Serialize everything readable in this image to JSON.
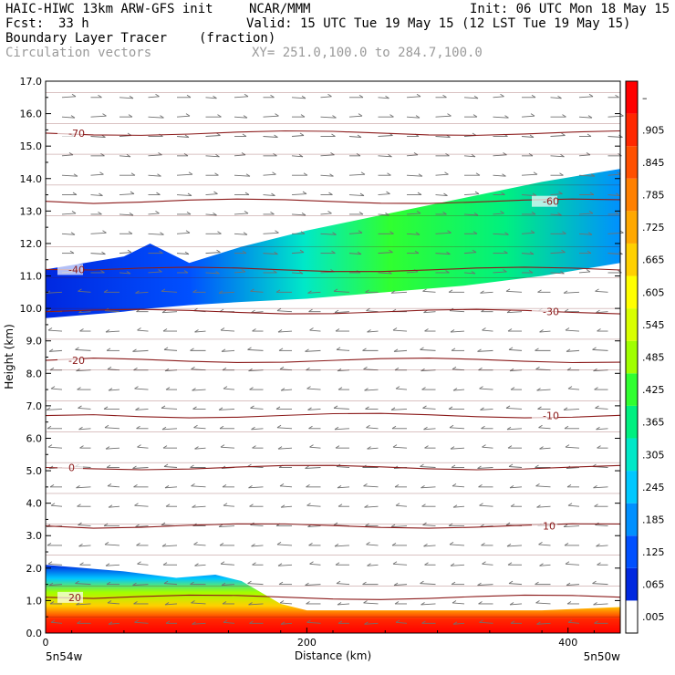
{
  "header": {
    "model": "HAIC-HIWC 13km ARW-GFS init",
    "org": "NCAR/MMM",
    "init": "Init: 06 UTC Mon 18 May 15",
    "fcst_label": "Fcst:",
    "fcst_value": "33 h",
    "valid": "Valid: 15 UTC Tue 19 May 15 (12 LST Tue 19 May 15)",
    "field": "Boundary Layer Tracer",
    "units": "(fraction)",
    "vectors": "Circulation vectors",
    "xy": "XY= 251.0,100.0 to 284.7,100.0"
  },
  "chart_data": {
    "type": "heatmap",
    "xlabel": "Distance (km)",
    "ylabel": "Height (km)",
    "xlim": [
      0,
      440
    ],
    "ylim": [
      0,
      17
    ],
    "x_ticks": [
      0,
      200,
      400
    ],
    "y_ticks": [
      "0.0",
      "1.0",
      "2.0",
      "3.0",
      "4.0",
      "5.0",
      "6.0",
      "7.0",
      "8.0",
      "9.0",
      "10.0",
      "11.0",
      "12.0",
      "13.0",
      "14.0",
      "15.0",
      "16.0",
      "17.0"
    ],
    "x_endpoint_labels": [
      "5n54w",
      "5n50w"
    ],
    "colorbar": {
      "labels": [
        ".005",
        ".065",
        ".125",
        ".185",
        ".245",
        ".305",
        ".365",
        ".425",
        ".485",
        ".545",
        ".605",
        ".665",
        ".725",
        ".785",
        ".845",
        ".905",
        "–"
      ],
      "colors": [
        "#ffffff",
        "#0028e0",
        "#0050ff",
        "#0090ff",
        "#00c8ff",
        "#00e8c8",
        "#00f080",
        "#30ff30",
        "#a0ff00",
        "#d8ff00",
        "#ffff00",
        "#ffd000",
        "#ffa800",
        "#ff8000",
        "#ff5000",
        "#ff2800",
        "#ff0000"
      ]
    },
    "tracer_layers": [
      {
        "name": "upper",
        "x": [
          0,
          60,
          80,
          110,
          150,
          200,
          260,
          320,
          380,
          440
        ],
        "top": [
          11.2,
          11.6,
          12.0,
          11.4,
          11.9,
          12.4,
          12.9,
          13.4,
          13.9,
          14.3
        ],
        "bottom": [
          9.7,
          9.9,
          10.0,
          10.1,
          10.2,
          10.3,
          10.5,
          10.7,
          11.0,
          11.4
        ]
      },
      {
        "name": "boundary",
        "x": [
          0,
          60,
          100,
          130,
          150,
          180,
          200,
          260,
          320,
          380,
          440
        ],
        "top": [
          2.1,
          1.9,
          1.7,
          1.8,
          1.6,
          0.9,
          0.7,
          0.7,
          0.7,
          0.7,
          0.8
        ]
      }
    ],
    "temperature_contours": [
      {
        "label": "-70",
        "y": 15.4
      },
      {
        "label": "-60",
        "y": 13.3
      },
      {
        "label": "-40",
        "y": 11.2
      },
      {
        "label": "-30",
        "y": 9.9
      },
      {
        "label": "-20",
        "y": 8.4
      },
      {
        "label": "-10",
        "y": 6.7
      },
      {
        "label": "0",
        "y": 5.1
      },
      {
        "label": "10",
        "y": 3.3
      },
      {
        "label": "20",
        "y": 1.1
      }
    ],
    "wind_vectors": {
      "upper": "westerly",
      "middle": "easterly",
      "lower": "easterly"
    }
  }
}
